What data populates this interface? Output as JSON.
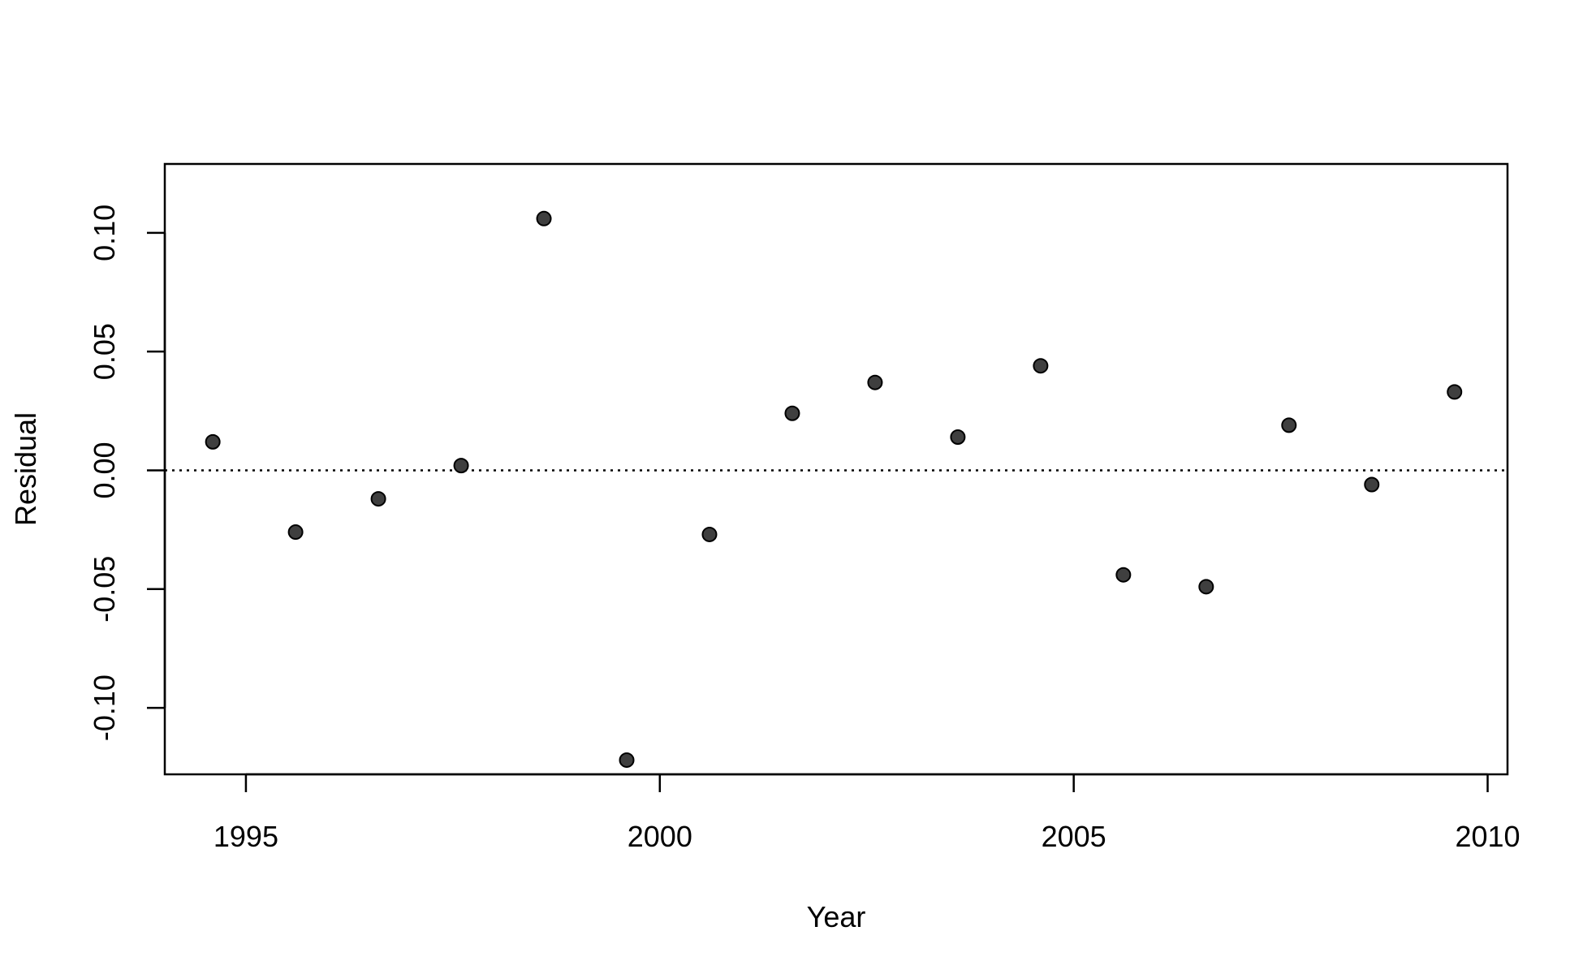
{
  "chart_data": {
    "type": "scatter",
    "title": "",
    "xlabel": "Year",
    "ylabel": "Residual",
    "xlim": [
      1994.02,
      2010.24
    ],
    "ylim": [
      -0.128,
      0.129
    ],
    "x_ticks": [
      1995,
      2000,
      2005,
      2010
    ],
    "x_tick_labels": [
      "1995",
      "2000",
      "2005",
      "2010"
    ],
    "y_ticks": [
      -0.1,
      -0.05,
      0.0,
      0.05,
      0.1
    ],
    "y_tick_labels": [
      "-0.10",
      "-0.05",
      "0.00",
      "0.05",
      "0.10"
    ],
    "reference_line": {
      "y": 0.0,
      "style": "dotted"
    },
    "grid": false,
    "point_color": "#3f3f3f",
    "points": [
      {
        "x": 1994.6,
        "y": 0.012
      },
      {
        "x": 1995.6,
        "y": -0.026
      },
      {
        "x": 1996.6,
        "y": -0.012
      },
      {
        "x": 1997.6,
        "y": 0.002
      },
      {
        "x": 1998.6,
        "y": 0.106
      },
      {
        "x": 1999.6,
        "y": -0.122
      },
      {
        "x": 2000.6,
        "y": -0.027
      },
      {
        "x": 2001.6,
        "y": 0.024
      },
      {
        "x": 2002.6,
        "y": 0.037
      },
      {
        "x": 2003.6,
        "y": 0.014
      },
      {
        "x": 2004.6,
        "y": 0.044
      },
      {
        "x": 2005.6,
        "y": -0.044
      },
      {
        "x": 2006.6,
        "y": -0.049
      },
      {
        "x": 2007.6,
        "y": 0.019
      },
      {
        "x": 2008.6,
        "y": -0.006
      },
      {
        "x": 2009.6,
        "y": 0.033
      }
    ]
  }
}
